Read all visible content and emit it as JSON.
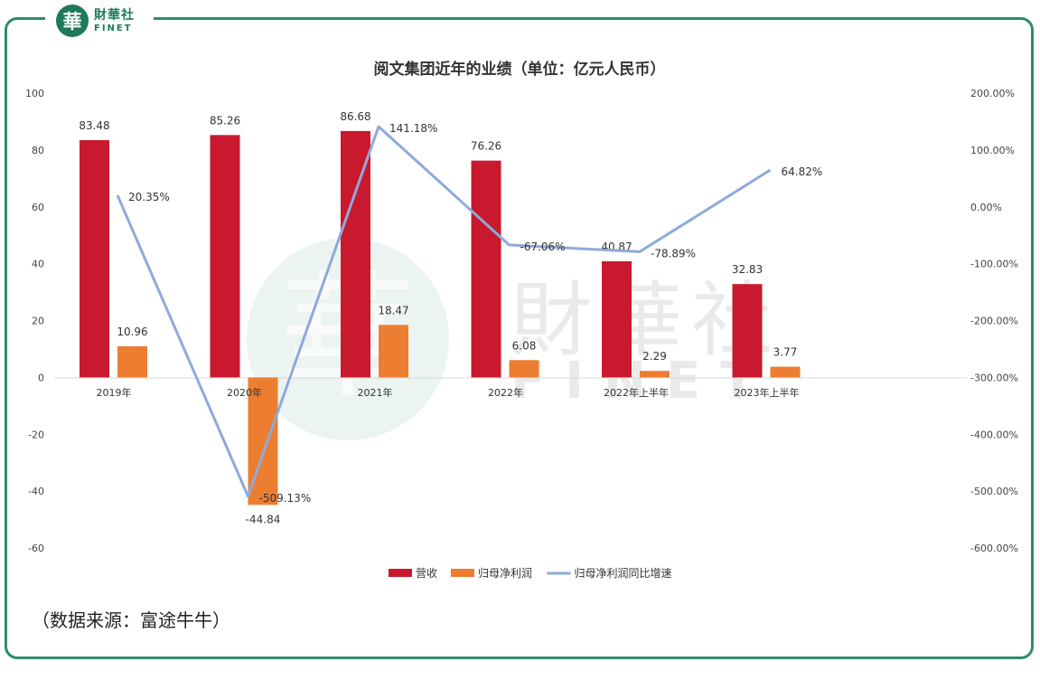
{
  "brand": {
    "badge_char": "華",
    "name_cn": "財華社",
    "name_en": "FINET"
  },
  "watermark": {
    "cn": "財華社",
    "en": "FINET",
    "badge_char": "華"
  },
  "source_note": "（数据来源：富途牛牛）",
  "colors": {
    "revenue": "#c8192e",
    "net_profit": "#ed7d31",
    "growth_line": "#8eaadb",
    "frame": "#2e8b6e"
  },
  "chart_data": {
    "type": "bar",
    "title": "阅文集团近年的业绩（单位：亿元人民币）",
    "categories": [
      "2019年",
      "2020年",
      "2021年",
      "2022年",
      "2022年上半年",
      "2023年上半年"
    ],
    "series": [
      {
        "name": "营收",
        "type": "bar",
        "axis": "left",
        "values": [
          83.48,
          85.26,
          86.68,
          76.26,
          40.87,
          32.83
        ],
        "labels": [
          "83.48",
          "85.26",
          "86.68",
          "76.26",
          "40.87",
          "32.83"
        ]
      },
      {
        "name": "归母净利润",
        "type": "bar",
        "axis": "left",
        "values": [
          10.96,
          -44.84,
          18.47,
          6.08,
          2.29,
          3.77
        ],
        "labels": [
          "10.96",
          "-44.84",
          "18.47",
          "6.08",
          "2.29",
          "3.77"
        ]
      },
      {
        "name": "归母净利润同比增速",
        "type": "line",
        "axis": "right",
        "values": [
          20.35,
          -509.13,
          141.18,
          -67.06,
          -78.89,
          64.82
        ],
        "labels": [
          "20.35%",
          "-509.13%",
          "141.18%",
          "-67.06%",
          "-78.89%",
          "64.82%"
        ]
      }
    ],
    "y_left": {
      "min": -60,
      "max": 100,
      "ticks": [
        "100",
        "80",
        "60",
        "40",
        "20",
        "0",
        "-20",
        "-40",
        "-60"
      ]
    },
    "y_right": {
      "min": -600,
      "max": 200,
      "ticks": [
        "200.00%",
        "100.00%",
        "0.00%",
        "-100.00%",
        "-200.00%",
        "-300.00%",
        "-400.00%",
        "-500.00%",
        "-600.00%"
      ]
    },
    "grid": false,
    "legend_position": "bottom"
  }
}
